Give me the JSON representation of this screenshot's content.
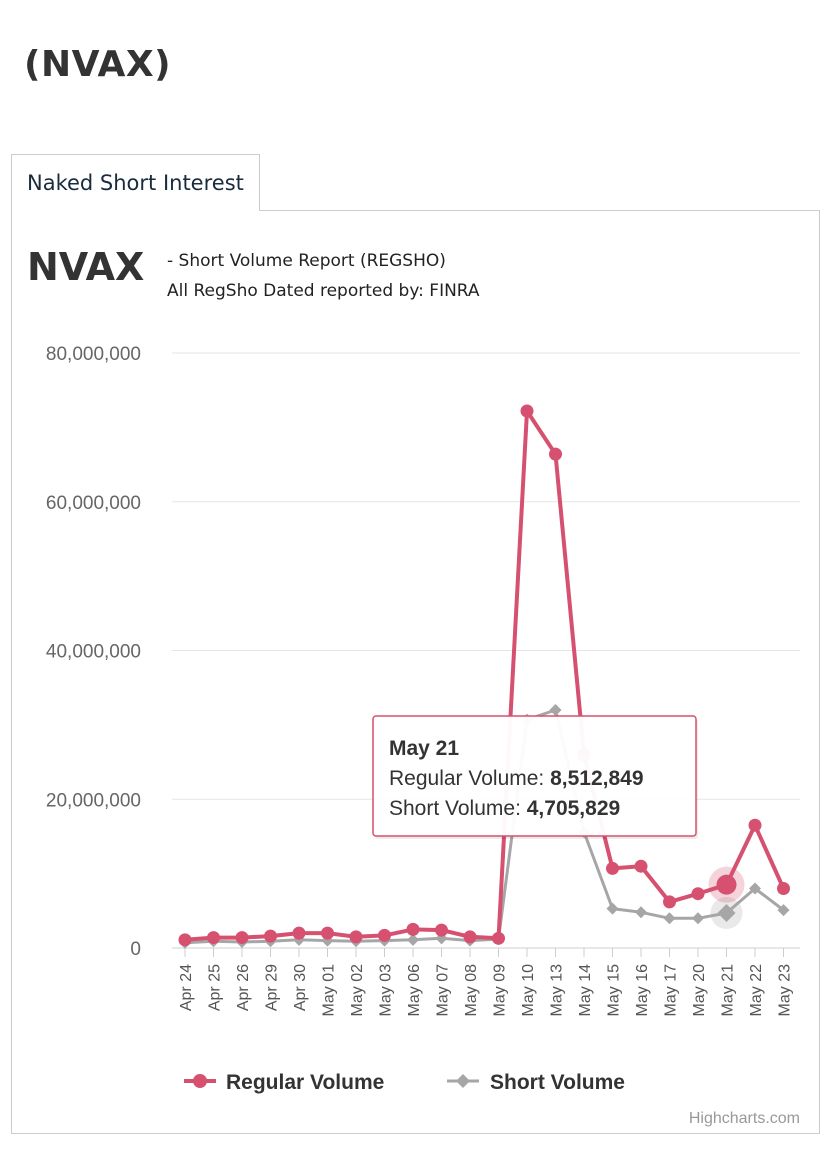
{
  "page": {
    "title": "(NVAX)",
    "tab_label": "Naked Short Interest",
    "ticker": "NVAX",
    "report_title": "- Short Volume Report  (REGSHO)",
    "report_source": "All RegSho Dated reported by: FINRA"
  },
  "colors": {
    "regular": "#d6506f",
    "short": "#a6a6a6",
    "tooltip_border": "#d6506f"
  },
  "chart_data": {
    "type": "line",
    "title": "",
    "xlabel": "",
    "ylabel": "",
    "ylim": [
      0,
      80000000
    ],
    "yticks": [
      0,
      20000000,
      40000000,
      60000000,
      80000000
    ],
    "ytick_labels": [
      "0",
      "20,000,000",
      "40,000,000",
      "60,000,000",
      "80,000,000"
    ],
    "categories": [
      "Apr 24",
      "Apr 25",
      "Apr 26",
      "Apr 29",
      "Apr 30",
      "May 01",
      "May 02",
      "May 03",
      "May 06",
      "May 07",
      "May 08",
      "May 09",
      "May 10",
      "May 13",
      "May 14",
      "May 15",
      "May 16",
      "May 17",
      "May 20",
      "May 21",
      "May 22",
      "May 23"
    ],
    "series": [
      {
        "name": "Regular Volume",
        "marker": "circle",
        "values": [
          1100000,
          1400000,
          1400000,
          1600000,
          2000000,
          2000000,
          1500000,
          1700000,
          2500000,
          2400000,
          1500000,
          1300000,
          72200000,
          66400000,
          26000000,
          10700000,
          11000000,
          6200000,
          7300000,
          8512849,
          16500000,
          8000000
        ]
      },
      {
        "name": "Short Volume",
        "marker": "diamond",
        "values": [
          700000,
          900000,
          800000,
          900000,
          1100000,
          1000000,
          900000,
          1000000,
          1100000,
          1300000,
          1000000,
          1200000,
          30700000,
          32000000,
          15600000,
          5300000,
          4800000,
          4000000,
          4000000,
          4705829,
          8000000,
          5100000
        ]
      }
    ],
    "legend": "bottom-center",
    "grid": true,
    "credits": "Highcharts.com",
    "tooltip": {
      "category": "May 21",
      "rows": [
        {
          "label": "Regular Volume: ",
          "value": "8,512,849"
        },
        {
          "label": "Short Volume: ",
          "value": "4,705,829"
        }
      ]
    }
  }
}
